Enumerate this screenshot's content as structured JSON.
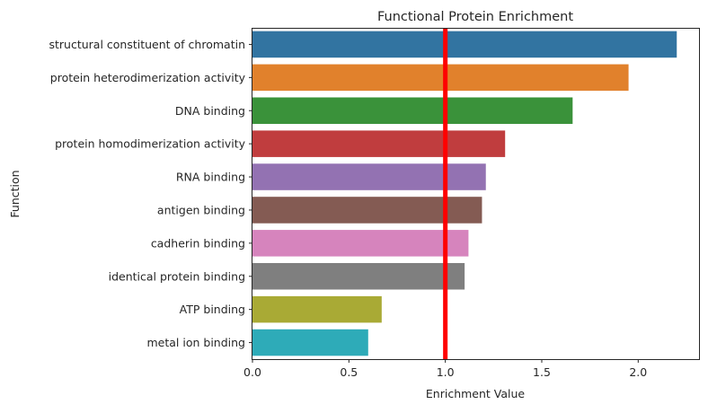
{
  "chart_data": {
    "type": "bar",
    "orientation": "horizontal",
    "title": "Functional Protein Enrichment",
    "xlabel": "Enrichment Value",
    "ylabel": "Function",
    "xlim": [
      0,
      2.32
    ],
    "xticks": [
      "0.0",
      "0.5",
      "1.0",
      "1.5",
      "2.0"
    ],
    "xtick_values": [
      0.0,
      0.5,
      1.0,
      1.5,
      2.0
    ],
    "categories": [
      "structural constituent of chromatin",
      "protein heterodimerization activity",
      "DNA binding",
      "protein homodimerization activity",
      "RNA binding",
      "antigen binding",
      "cadherin binding",
      "identical protein binding",
      "ATP binding",
      "metal ion binding"
    ],
    "values": [
      2.2,
      1.95,
      1.66,
      1.31,
      1.21,
      1.19,
      1.12,
      1.1,
      0.67,
      0.6
    ],
    "colors": [
      "#3274a1",
      "#e1812c",
      "#3a923a",
      "#c03d3e",
      "#9372b2",
      "#845b53",
      "#d684bd",
      "#7f7f7f",
      "#a9aa35",
      "#2eabb8"
    ],
    "reference_line": {
      "value": 1.0,
      "color": "#ff0000"
    },
    "grid": false,
    "legend": "none"
  }
}
